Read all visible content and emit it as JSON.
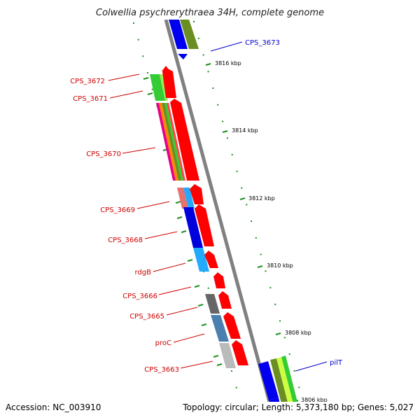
{
  "title": "Colwellia psychrerythraea 34H, complete genome",
  "accession": "Accession: NC_003910",
  "summary": "Topology: circular; Length: 5,373,180 bp; Genes: 5,027",
  "colors": {
    "forward_label": "#0000cc",
    "reverse_label": "#cc0000",
    "backbone": "#808080",
    "tick": "#1f8f1f"
  },
  "position_ticks": [
    "3816 kbp",
    "3814 kbp",
    "3812 kbp",
    "3810 kbp",
    "3808 kbp",
    "3806 kbp"
  ],
  "forward_genes": [
    {
      "label": "CPS_3673",
      "color": "#0000cc"
    },
    {
      "label": "pilT",
      "color": "#0000cc"
    }
  ],
  "reverse_genes": [
    {
      "label": "CPS_3672",
      "color": "#cc0000"
    },
    {
      "label": "CPS_3671",
      "color": "#cc0000"
    },
    {
      "label": "CPS_3670",
      "color": "#cc0000"
    },
    {
      "label": "CPS_3669",
      "color": "#cc0000"
    },
    {
      "label": "CPS_3668",
      "color": "#cc0000"
    },
    {
      "label": "rdgB",
      "color": "#cc0000"
    },
    {
      "label": "CPS_3666",
      "color": "#cc0000"
    },
    {
      "label": "CPS_3665",
      "color": "#cc0000"
    },
    {
      "label": "proC",
      "color": "#cc0000"
    },
    {
      "label": "CPS_3663",
      "color": "#cc0000"
    }
  ]
}
